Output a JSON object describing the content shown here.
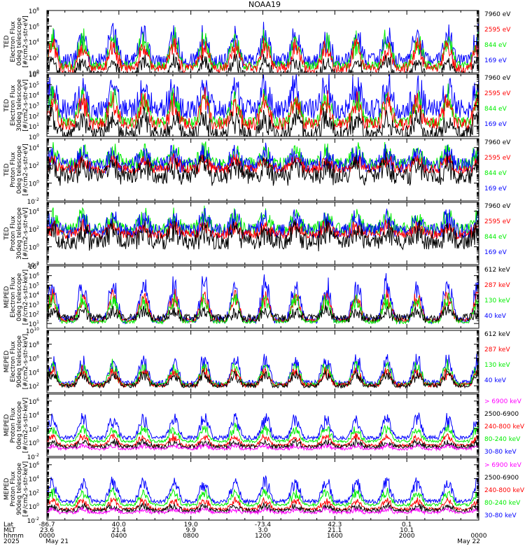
{
  "title": "NOAA19",
  "colors": {
    "black": "#000000",
    "blue": "#0000ff",
    "green": "#00ee00",
    "red": "#ff0000",
    "magenta": "#ff00ff"
  },
  "chart_data": [
    {
      "type": "line",
      "ylabel_lines": [
        "TED",
        "Electron Flux",
        "0deg telescope",
        "[#/cm2-s-str-eV]"
      ],
      "yticks": [
        {
          "b": 0,
          "e": "0"
        },
        {
          "b": 2,
          "e": "2"
        },
        {
          "b": 4,
          "e": "4"
        },
        {
          "b": 6,
          "e": "6"
        },
        {
          "b": 8,
          "e": "8"
        }
      ],
      "ylim_exp": [
        0,
        8
      ],
      "grid": false,
      "series": [
        {
          "name": "7960 eV",
          "color": "#000000",
          "base": -0.3,
          "amp": 2.4,
          "band": 0.5
        },
        {
          "name": "2595 eV",
          "color": "#ff0000",
          "base": 0.6,
          "amp": 3.6,
          "band": 0.6
        },
        {
          "name": "844 eV",
          "color": "#00ee00",
          "base": 0.9,
          "amp": 4.4,
          "band": 0.6
        },
        {
          "name": "169 eV",
          "color": "#0000ff",
          "base": 1.6,
          "amp": 4.2,
          "band": 0.9
        }
      ]
    },
    {
      "type": "line",
      "ylabel_lines": [
        "TED",
        "Electron Flux",
        "30deg telescope",
        "[#/cm2-s-str-eV]"
      ],
      "yticks": [
        {
          "b": 0,
          "e": "0"
        },
        {
          "b": 1,
          "e": "1"
        },
        {
          "b": 2,
          "e": "2"
        },
        {
          "b": 3,
          "e": "3"
        },
        {
          "b": 4,
          "e": "4"
        },
        {
          "b": 5,
          "e": "5"
        },
        {
          "b": 6,
          "e": "6"
        }
      ],
      "ylim_exp": [
        0,
        6
      ],
      "grid": false,
      "series": [
        {
          "name": "7960 eV",
          "color": "#000000",
          "base": 0.3,
          "amp": 1.9,
          "band": 0.7
        },
        {
          "name": "2595 eV",
          "color": "#ff0000",
          "base": 1.2,
          "amp": 2.8,
          "band": 0.6
        },
        {
          "name": "844 eV",
          "color": "#00ee00",
          "base": 1.4,
          "amp": 3.1,
          "band": 0.5
        },
        {
          "name": "169 eV",
          "color": "#0000ff",
          "base": 2.6,
          "amp": 2.8,
          "band": 1.0
        }
      ]
    },
    {
      "type": "line",
      "ylabel_lines": [
        "TED",
        "Proton Flux",
        "0deg telescope",
        "[#/cm2-s-str-eV]"
      ],
      "yticks": [
        {
          "b": -2,
          "e": "-2"
        },
        {
          "b": 0,
          "e": "0"
        },
        {
          "b": 2,
          "e": "2"
        },
        {
          "b": 4,
          "e": "4"
        }
      ],
      "ylim_exp": [
        -2,
        5
      ],
      "grid": false,
      "series": [
        {
          "name": "7960 eV",
          "color": "#000000",
          "base": 0.8,
          "amp": 1.6,
          "band": 0.9
        },
        {
          "name": "2595 eV",
          "color": "#ff0000",
          "base": 1.6,
          "amp": 1.2,
          "band": 0.5
        },
        {
          "name": "844 eV",
          "color": "#00ee00",
          "base": 2.2,
          "amp": 1.8,
          "band": 0.7
        },
        {
          "name": "169 eV",
          "color": "#0000ff",
          "base": 2.0,
          "amp": 1.6,
          "band": 0.8
        }
      ]
    },
    {
      "type": "line",
      "ylabel_lines": [
        "TED",
        "Proton Flux",
        "30deg telescope",
        "[#/cm2-s-str-eV]"
      ],
      "yticks": [
        {
          "b": -2,
          "e": "-2"
        },
        {
          "b": 0,
          "e": "0"
        },
        {
          "b": 2,
          "e": "2"
        },
        {
          "b": 4,
          "e": "4"
        }
      ],
      "ylim_exp": [
        -2,
        5
      ],
      "grid": false,
      "series": [
        {
          "name": "7960 eV",
          "color": "#000000",
          "base": 0.6,
          "amp": 1.6,
          "band": 0.9
        },
        {
          "name": "2595 eV",
          "color": "#ff0000",
          "base": 1.4,
          "amp": 1.2,
          "band": 0.5
        },
        {
          "name": "844 eV",
          "color": "#00ee00",
          "base": 2.0,
          "amp": 1.8,
          "band": 0.7
        },
        {
          "name": "169 eV",
          "color": "#0000ff",
          "base": 1.8,
          "amp": 1.6,
          "band": 0.8
        }
      ]
    },
    {
      "type": "line",
      "ylabel_lines": [
        "MEPED",
        "Electron Flux",
        "0deg telescope",
        "[#/cm2-s-str-keV]"
      ],
      "yticks": [
        {
          "b": 1,
          "e": "1"
        },
        {
          "b": 2,
          "e": "2"
        },
        {
          "b": 3,
          "e": "3"
        },
        {
          "b": 4,
          "e": "4"
        },
        {
          "b": 5,
          "e": "5"
        },
        {
          "b": 6,
          "e": "6"
        },
        {
          "b": 7,
          "e": "7"
        }
      ],
      "ylim_exp": [
        0.5,
        7
      ],
      "grid": false,
      "series": [
        {
          "name": "612 keV",
          "color": "#000000",
          "base": 1.6,
          "amp": 0.8,
          "band": 0.4
        },
        {
          "name": "287 keV",
          "color": "#ff0000",
          "base": 1.35,
          "amp": 3.2,
          "band": 0.2
        },
        {
          "name": "130 keV",
          "color": "#00ee00",
          "base": 1.2,
          "amp": 3.0,
          "band": 0.2
        },
        {
          "name": "40 keV",
          "color": "#0000ff",
          "base": 1.4,
          "amp": 4.6,
          "band": 0.4
        }
      ]
    },
    {
      "type": "line",
      "ylabel_lines": [
        "MEPED",
        "Electron Flux",
        "90deg telescope",
        "[#/cm2-s-str-keV]"
      ],
      "yticks": [
        {
          "b": 2,
          "e": "2"
        },
        {
          "b": 4,
          "e": "4"
        },
        {
          "b": 6,
          "e": "6"
        },
        {
          "b": 8,
          "e": "8"
        },
        {
          "b": 10,
          "e": "10"
        }
      ],
      "ylim_exp": [
        1,
        10
      ],
      "grid": false,
      "series": [
        {
          "name": "612 keV",
          "color": "#000000",
          "base": 2.0,
          "amp": 2.2,
          "band": 0.3
        },
        {
          "name": "287 keV",
          "color": "#ff0000",
          "base": 2.1,
          "amp": 2.6,
          "band": 0.3
        },
        {
          "name": "130 keV",
          "color": "#00ee00",
          "base": 2.2,
          "amp": 3.4,
          "band": 0.3
        },
        {
          "name": "40 keV",
          "color": "#0000ff",
          "base": 2.4,
          "amp": 4.2,
          "band": 0.4
        }
      ]
    },
    {
      "type": "line",
      "ylabel_lines": [
        "MEPED",
        "Proton Flux",
        "0deg telescope",
        "[#/cm2-s-str-keV]"
      ],
      "yticks": [
        {
          "b": -2,
          "e": "-2"
        },
        {
          "b": 0,
          "e": "0"
        },
        {
          "b": 2,
          "e": "2"
        },
        {
          "b": 4,
          "e": "4"
        },
        {
          "b": 6,
          "e": "6"
        }
      ],
      "ylim_exp": [
        -2,
        7
      ],
      "grid": false,
      "series": [
        {
          "name": "> 6900 keV",
          "color": "#ff00ff",
          "base": -0.9,
          "amp": 0.6,
          "band": 0.2
        },
        {
          "name": "2500-6900",
          "color": "#000000",
          "base": -0.6,
          "amp": 0.8,
          "band": 0.3
        },
        {
          "name": "240-800 keV",
          "color": "#ff0000",
          "base": -0.4,
          "amp": 1.6,
          "band": 0.2
        },
        {
          "name": "80-240 keV",
          "color": "#00ee00",
          "base": 0.2,
          "amp": 2.4,
          "band": 0.2
        },
        {
          "name": "30-80 keV",
          "color": "#0000ff",
          "base": 0.7,
          "amp": 3.6,
          "band": 0.3
        }
      ]
    },
    {
      "type": "line",
      "ylabel_lines": [
        "MEPED",
        "Proton Flux",
        "90deg telescope",
        "[#/cm2-s-str-keV]"
      ],
      "yticks": [
        {
          "b": -2,
          "e": "-2"
        },
        {
          "b": 0,
          "e": "0"
        },
        {
          "b": 2,
          "e": "2"
        },
        {
          "b": 4,
          "e": "4"
        },
        {
          "b": 6,
          "e": "6"
        }
      ],
      "ylim_exp": [
        -2,
        7
      ],
      "grid": false,
      "series": [
        {
          "name": "> 6900 keV",
          "color": "#ff00ff",
          "base": -0.9,
          "amp": 0.6,
          "band": 0.2
        },
        {
          "name": "2500-6900",
          "color": "#000000",
          "base": -0.6,
          "amp": 0.8,
          "band": 0.3
        },
        {
          "name": "240-800 keV",
          "color": "#ff0000",
          "base": -0.4,
          "amp": 1.6,
          "band": 0.2
        },
        {
          "name": "80-240 keV",
          "color": "#00ee00",
          "base": 0.2,
          "amp": 2.4,
          "band": 0.2
        },
        {
          "name": "30-80 keV",
          "color": "#0000ff",
          "base": 0.7,
          "amp": 3.6,
          "band": 0.3
        }
      ]
    }
  ],
  "xaxis": {
    "row_labels": [
      "Lat",
      "MLT",
      "hhmm",
      "2025"
    ],
    "ticks": [
      {
        "hour": 0,
        "lat": "-86.7",
        "mlt": "23.6",
        "hhmm": "0000",
        "date": "May 21"
      },
      {
        "hour": 4,
        "lat": "40.0",
        "mlt": "21.4",
        "hhmm": "0400",
        "date": ""
      },
      {
        "hour": 8,
        "lat": "19.0",
        "mlt": "9.9",
        "hhmm": "0800",
        "date": ""
      },
      {
        "hour": 12,
        "lat": "-73.4",
        "mlt": "3.0",
        "hhmm": "1200",
        "date": ""
      },
      {
        "hour": 16,
        "lat": "42.3",
        "mlt": "21.1",
        "hhmm": "1600",
        "date": ""
      },
      {
        "hour": 20,
        "lat": "0.1",
        "mlt": "10.1",
        "hhmm": "2000",
        "date": ""
      },
      {
        "hour": 24,
        "lat": "",
        "mlt": "",
        "hhmm": "0000",
        "date": "May 22"
      }
    ]
  }
}
